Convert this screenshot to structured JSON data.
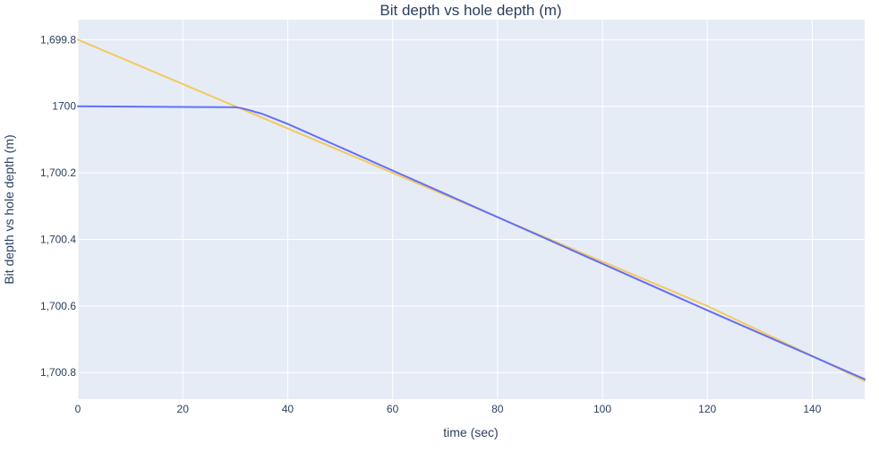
{
  "chart_data": {
    "type": "line",
    "title": "Bit depth vs hole depth (m)",
    "xlabel": "time (sec)",
    "ylabel": "Bit depth vs hole depth (m)",
    "xlim": [
      0,
      150
    ],
    "ylim": [
      1700.88,
      1699.74
    ],
    "y_reversed": true,
    "grid": true,
    "legend": "none",
    "x_ticks": [
      0,
      20,
      40,
      60,
      80,
      100,
      120,
      140
    ],
    "x_tick_labels": [
      "0",
      "20",
      "40",
      "60",
      "80",
      "100",
      "120",
      "140"
    ],
    "y_ticks": [
      1699.8,
      1700,
      1700.2,
      1700.4,
      1700.6,
      1700.8
    ],
    "y_tick_labels": [
      "1,699.8",
      "1700",
      "1,700.2",
      "1,700.4",
      "1,700.6",
      "1,700.8"
    ],
    "series": [
      {
        "color": "#f4c95d",
        "x": [
          0,
          30,
          60,
          90,
          120,
          150
        ],
        "y": [
          1699.8,
          1700.0,
          1700.2,
          1700.4,
          1700.6,
          1700.825
        ]
      },
      {
        "color": "#636efa",
        "x": [
          0,
          10,
          20,
          30,
          31,
          32,
          33,
          34,
          35,
          40,
          60,
          90,
          120,
          150
        ],
        "y": [
          1700.0,
          1700.001,
          1700.002,
          1700.003,
          1700.005,
          1700.009,
          1700.013,
          1700.018,
          1700.022,
          1700.053,
          1700.193,
          1700.403,
          1700.613,
          1700.82
        ]
      }
    ]
  }
}
